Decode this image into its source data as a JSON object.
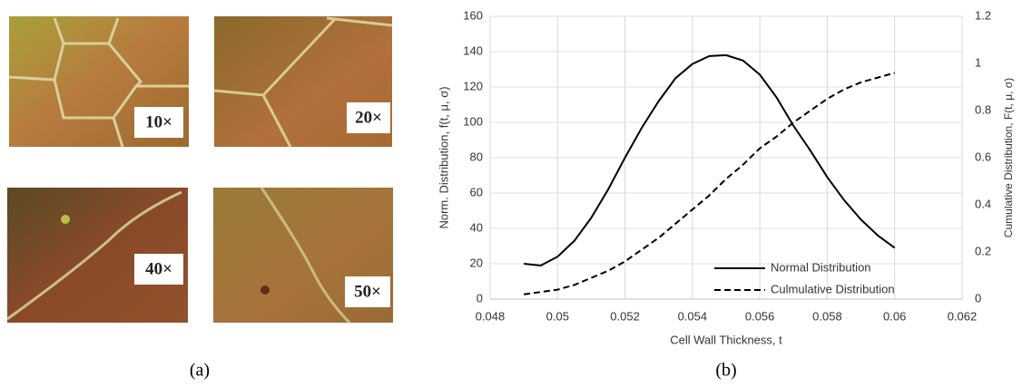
{
  "panel_a": {
    "images": [
      {
        "label": "10×"
      },
      {
        "label": "20×"
      },
      {
        "label": "40×"
      },
      {
        "label": "50×"
      }
    ],
    "caption": "(a)"
  },
  "chart_data": {
    "type": "line",
    "caption": "(b)",
    "x_label": "Cell Wall Thickness, t",
    "y_label": "Norm. Distribution, f(t, μ, σ)",
    "y2_label": "Cumulative Distribution, F(t, μ, σ)",
    "x": [
      0.049,
      0.0495,
      0.05,
      0.0505,
      0.051,
      0.0515,
      0.052,
      0.0525,
      0.053,
      0.0535,
      0.054,
      0.0545,
      0.055,
      0.0555,
      0.056,
      0.0565,
      0.057,
      0.0575,
      0.058,
      0.0585,
      0.059,
      0.0595,
      0.06
    ],
    "series": [
      {
        "name": "Normal Distribution",
        "color": "#000000",
        "dash": false,
        "values": [
          20,
          19,
          24,
          33,
          46,
          62,
          80,
          97,
          112,
          125,
          133,
          137.5,
          138,
          135,
          127,
          114,
          98,
          84,
          69,
          56,
          45,
          36,
          29
        ]
      },
      {
        "name": "Culmulative Distribution",
        "color": "#000000",
        "dash": true,
        "axis": "y2",
        "values": [
          0.02,
          0.03,
          0.04,
          0.06,
          0.09,
          0.12,
          0.16,
          0.21,
          0.26,
          0.32,
          0.38,
          0.44,
          0.51,
          0.57,
          0.64,
          0.69,
          0.75,
          0.8,
          0.85,
          0.89,
          0.92,
          0.94,
          0.96
        ]
      }
    ],
    "xlim": [
      0.048,
      0.062
    ],
    "xticks": [
      0.048,
      0.05,
      0.052,
      0.054,
      0.056,
      0.058,
      0.06,
      0.062
    ],
    "ylim": [
      0,
      160
    ],
    "yticks": [
      0,
      20,
      40,
      60,
      80,
      100,
      120,
      140,
      160
    ],
    "y2lim": [
      0,
      1.2
    ],
    "y2ticks": [
      0,
      0.2,
      0.4,
      0.6,
      0.8,
      1,
      1.2
    ],
    "grid": true,
    "legend": "lower right"
  }
}
